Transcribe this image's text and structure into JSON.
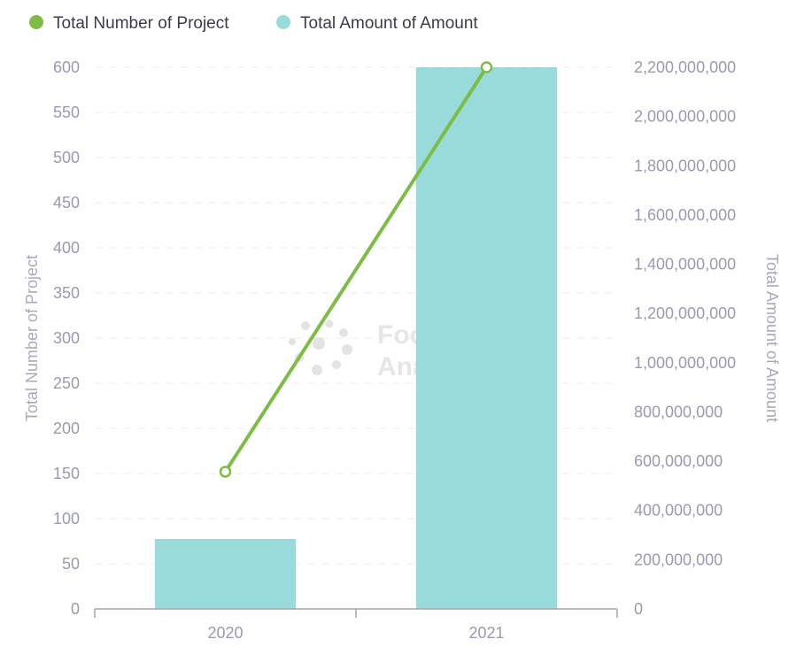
{
  "watermark": {
    "line1": "Footprint",
    "line2": "Analytics"
  },
  "chart_data": {
    "type": "bar",
    "categories": [
      "2020",
      "2021"
    ],
    "series": [
      {
        "name": "Total Number of Project",
        "type": "line",
        "axis": "left",
        "color": "#7dbd45",
        "values": [
          152,
          600
        ]
      },
      {
        "name": "Total Amount of Amount",
        "type": "bar",
        "axis": "right",
        "color": "#99dbdb",
        "values": [
          284000000,
          2200000000
        ]
      }
    ],
    "xlabel": "",
    "ylabel": "Total Number of Project",
    "y2label": "Total Amount of Amount",
    "ylim": [
      0,
      600
    ],
    "y2lim": [
      0,
      2200000000
    ],
    "yticks": [
      "0",
      "50",
      "100",
      "150",
      "200",
      "250",
      "300",
      "350",
      "400",
      "450",
      "500",
      "550",
      "600"
    ],
    "y2ticks": [
      "0",
      "200,000,000",
      "400,000,000",
      "600,000,000",
      "800,000,000",
      "1,000,000,000",
      "1,200,000,000",
      "1,400,000,000",
      "1,600,000,000",
      "1,800,000,000",
      "2,000,000,000",
      "2,200,000,000"
    ],
    "grid": true,
    "legend": "top-left"
  }
}
